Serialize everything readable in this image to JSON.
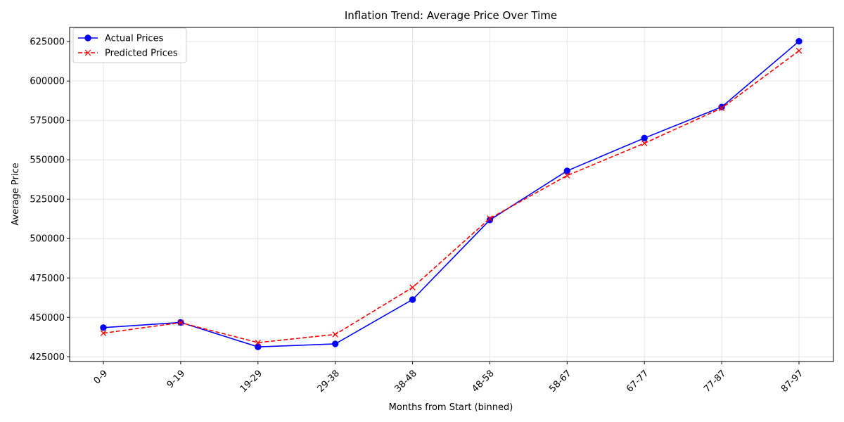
{
  "chart_data": {
    "type": "line",
    "title": "Inflation Trend: Average Price Over Time",
    "xlabel": "Months from Start (binned)",
    "ylabel": "Average Price",
    "categories": [
      "0-9",
      "9-19",
      "19-29",
      "29-38",
      "38-48",
      "48-58",
      "58-67",
      "67-77",
      "77-87",
      "87-97"
    ],
    "series": [
      {
        "name": "Actual Prices",
        "color": "#0000ff",
        "line_style": "solid",
        "marker": "circle",
        "values": [
          443500,
          446800,
          431300,
          433200,
          461300,
          511800,
          543000,
          563800,
          583500,
          625200
        ]
      },
      {
        "name": "Predicted Prices",
        "color": "#ff0000",
        "line_style": "dashed",
        "marker": "x",
        "values": [
          440000,
          446700,
          434000,
          439200,
          469000,
          512800,
          540000,
          560500,
          582800,
          619200
        ]
      }
    ],
    "yticks": [
      425000,
      450000,
      475000,
      500000,
      525000,
      550000,
      575000,
      600000,
      625000
    ],
    "ylim": [
      422000,
      634000
    ],
    "grid": true,
    "legend_position": "top-left",
    "xtick_rotation": 45
  }
}
